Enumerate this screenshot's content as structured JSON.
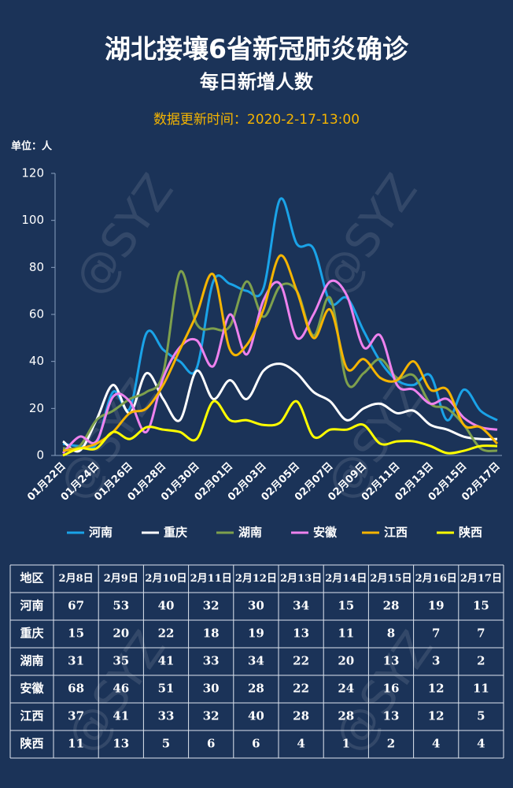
{
  "chart_data": {
    "type": "line",
    "title": "湖北接壤6省新冠肺炎确诊",
    "subtitle": "每日新增人数",
    "update_time": "数据更新时间：2020-2-17-13:00",
    "unit": "单位：人",
    "watermark": "@SYZ",
    "categories": [
      "01月22日",
      null,
      "01月24日",
      null,
      "01月26日",
      null,
      "01月28日",
      null,
      "01月30日",
      null,
      "02月01日",
      null,
      "02月03日",
      null,
      "02月05日",
      null,
      "02月07日",
      null,
      "02月09日",
      null,
      "02月11日",
      null,
      "02月13日",
      null,
      "02月15日",
      null,
      "02月17日"
    ],
    "ylim": [
      0,
      120
    ],
    "yticks": [
      0,
      20,
      40,
      60,
      80,
      100,
      120
    ],
    "smooth": true,
    "series": [
      {
        "name": "河南",
        "color": "#1aa3e8",
        "values": [
          5,
          4,
          5,
          27,
          20,
          52,
          45,
          40,
          37,
          74,
          73,
          70,
          71,
          109,
          90,
          88,
          65,
          67,
          53,
          40,
          32,
          30,
          34,
          15,
          28,
          19,
          15
        ]
      },
      {
        "name": "重庆",
        "color": "#ffffff",
        "values": [
          6,
          2,
          15,
          30,
          18,
          35,
          24,
          15,
          36,
          24,
          32,
          24,
          36,
          39,
          35,
          27,
          23,
          15,
          20,
          22,
          18,
          19,
          13,
          11,
          8,
          7,
          7
        ]
      },
      {
        "name": "湖南",
        "color": "#7ea04d",
        "values": [
          3,
          4,
          15,
          19,
          24,
          27,
          35,
          78,
          56,
          54,
          55,
          74,
          59,
          72,
          70,
          51,
          67,
          31,
          35,
          41,
          33,
          34,
          22,
          20,
          13,
          3,
          2
        ]
      },
      {
        "name": "安徽",
        "color": "#ee82ee",
        "values": [
          1,
          8,
          6,
          25,
          23,
          10,
          33,
          46,
          49,
          38,
          60,
          43,
          66,
          73,
          50,
          60,
          74,
          68,
          46,
          51,
          30,
          28,
          22,
          24,
          16,
          12,
          11
        ]
      },
      {
        "name": "江西",
        "color": "#f5b400",
        "values": [
          2,
          3,
          5,
          10,
          18,
          20,
          30,
          45,
          60,
          77,
          45,
          47,
          62,
          85,
          70,
          50,
          62,
          37,
          41,
          33,
          32,
          40,
          28,
          28,
          13,
          12,
          5
        ]
      },
      {
        "name": "陕西",
        "color": "#ffff00",
        "values": [
          0,
          3,
          3,
          10,
          7,
          12,
          11,
          10,
          7,
          23,
          15,
          15,
          13,
          14,
          23,
          8,
          11,
          11,
          13,
          5,
          6,
          6,
          4,
          1,
          2,
          4,
          4
        ]
      }
    ]
  },
  "table": {
    "header": [
      "地区",
      "2月8日",
      "2月9日",
      "2月10日",
      "2月11日",
      "2月12日",
      "2月13日",
      "2月14日",
      "2月15日",
      "2月16日",
      "2月17日"
    ],
    "rows": [
      [
        "河南",
        67,
        53,
        40,
        32,
        30,
        34,
        15,
        28,
        19,
        15
      ],
      [
        "重庆",
        15,
        20,
        22,
        18,
        19,
        13,
        11,
        8,
        7,
        7
      ],
      [
        "湖南",
        31,
        35,
        41,
        33,
        34,
        22,
        20,
        13,
        3,
        2
      ],
      [
        "安徽",
        68,
        46,
        51,
        30,
        28,
        22,
        24,
        16,
        12,
        11
      ],
      [
        "江西",
        37,
        41,
        33,
        32,
        40,
        28,
        28,
        13,
        12,
        5
      ],
      [
        "陕西",
        11,
        13,
        5,
        6,
        6,
        4,
        1,
        2,
        4,
        4
      ]
    ]
  }
}
